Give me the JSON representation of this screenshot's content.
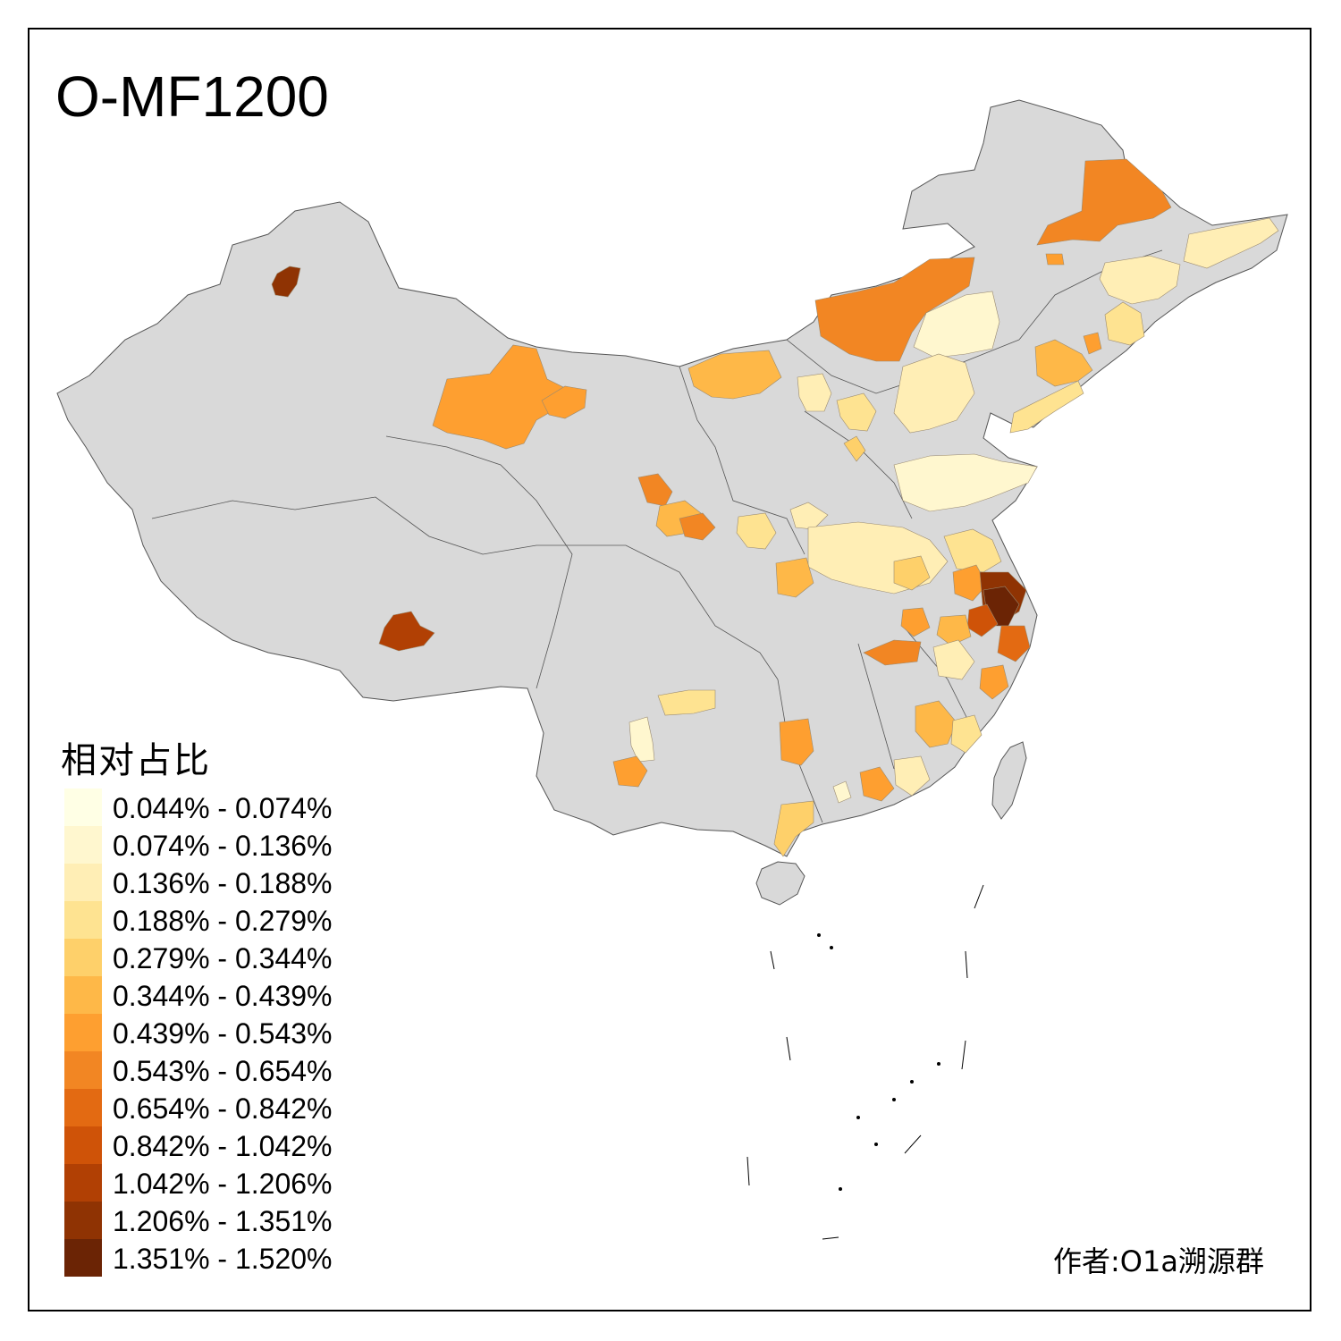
{
  "title": "O-MF1200",
  "legend": {
    "title": "相对占比",
    "items": [
      {
        "label": "0.044% - 0.074%",
        "color": "#ffffe5"
      },
      {
        "label": "0.074% - 0.136%",
        "color": "#fff7cf"
      },
      {
        "label": "0.136% - 0.188%",
        "color": "#ffeeb5"
      },
      {
        "label": "0.188% - 0.279%",
        "color": "#fee391"
      },
      {
        "label": "0.279% - 0.344%",
        "color": "#fed06a"
      },
      {
        "label": "0.344% - 0.439%",
        "color": "#feb848"
      },
      {
        "label": "0.439% - 0.543%",
        "color": "#fe9f30"
      },
      {
        "label": "0.543% - 0.654%",
        "color": "#f28623"
      },
      {
        "label": "0.654% - 0.842%",
        "color": "#e36a12"
      },
      {
        "label": "0.842% - 1.042%",
        "color": "#cf5308"
      },
      {
        "label": "1.042% - 1.206%",
        "color": "#b14004"
      },
      {
        "label": "1.206% - 1.351%",
        "color": "#8f3303"
      },
      {
        "label": "1.351% - 1.520%",
        "color": "#6b2405"
      }
    ]
  },
  "map": {
    "base_color": "#d9d9d9",
    "border_color": "#555555"
  },
  "author": "作者:O1a溯源群"
}
